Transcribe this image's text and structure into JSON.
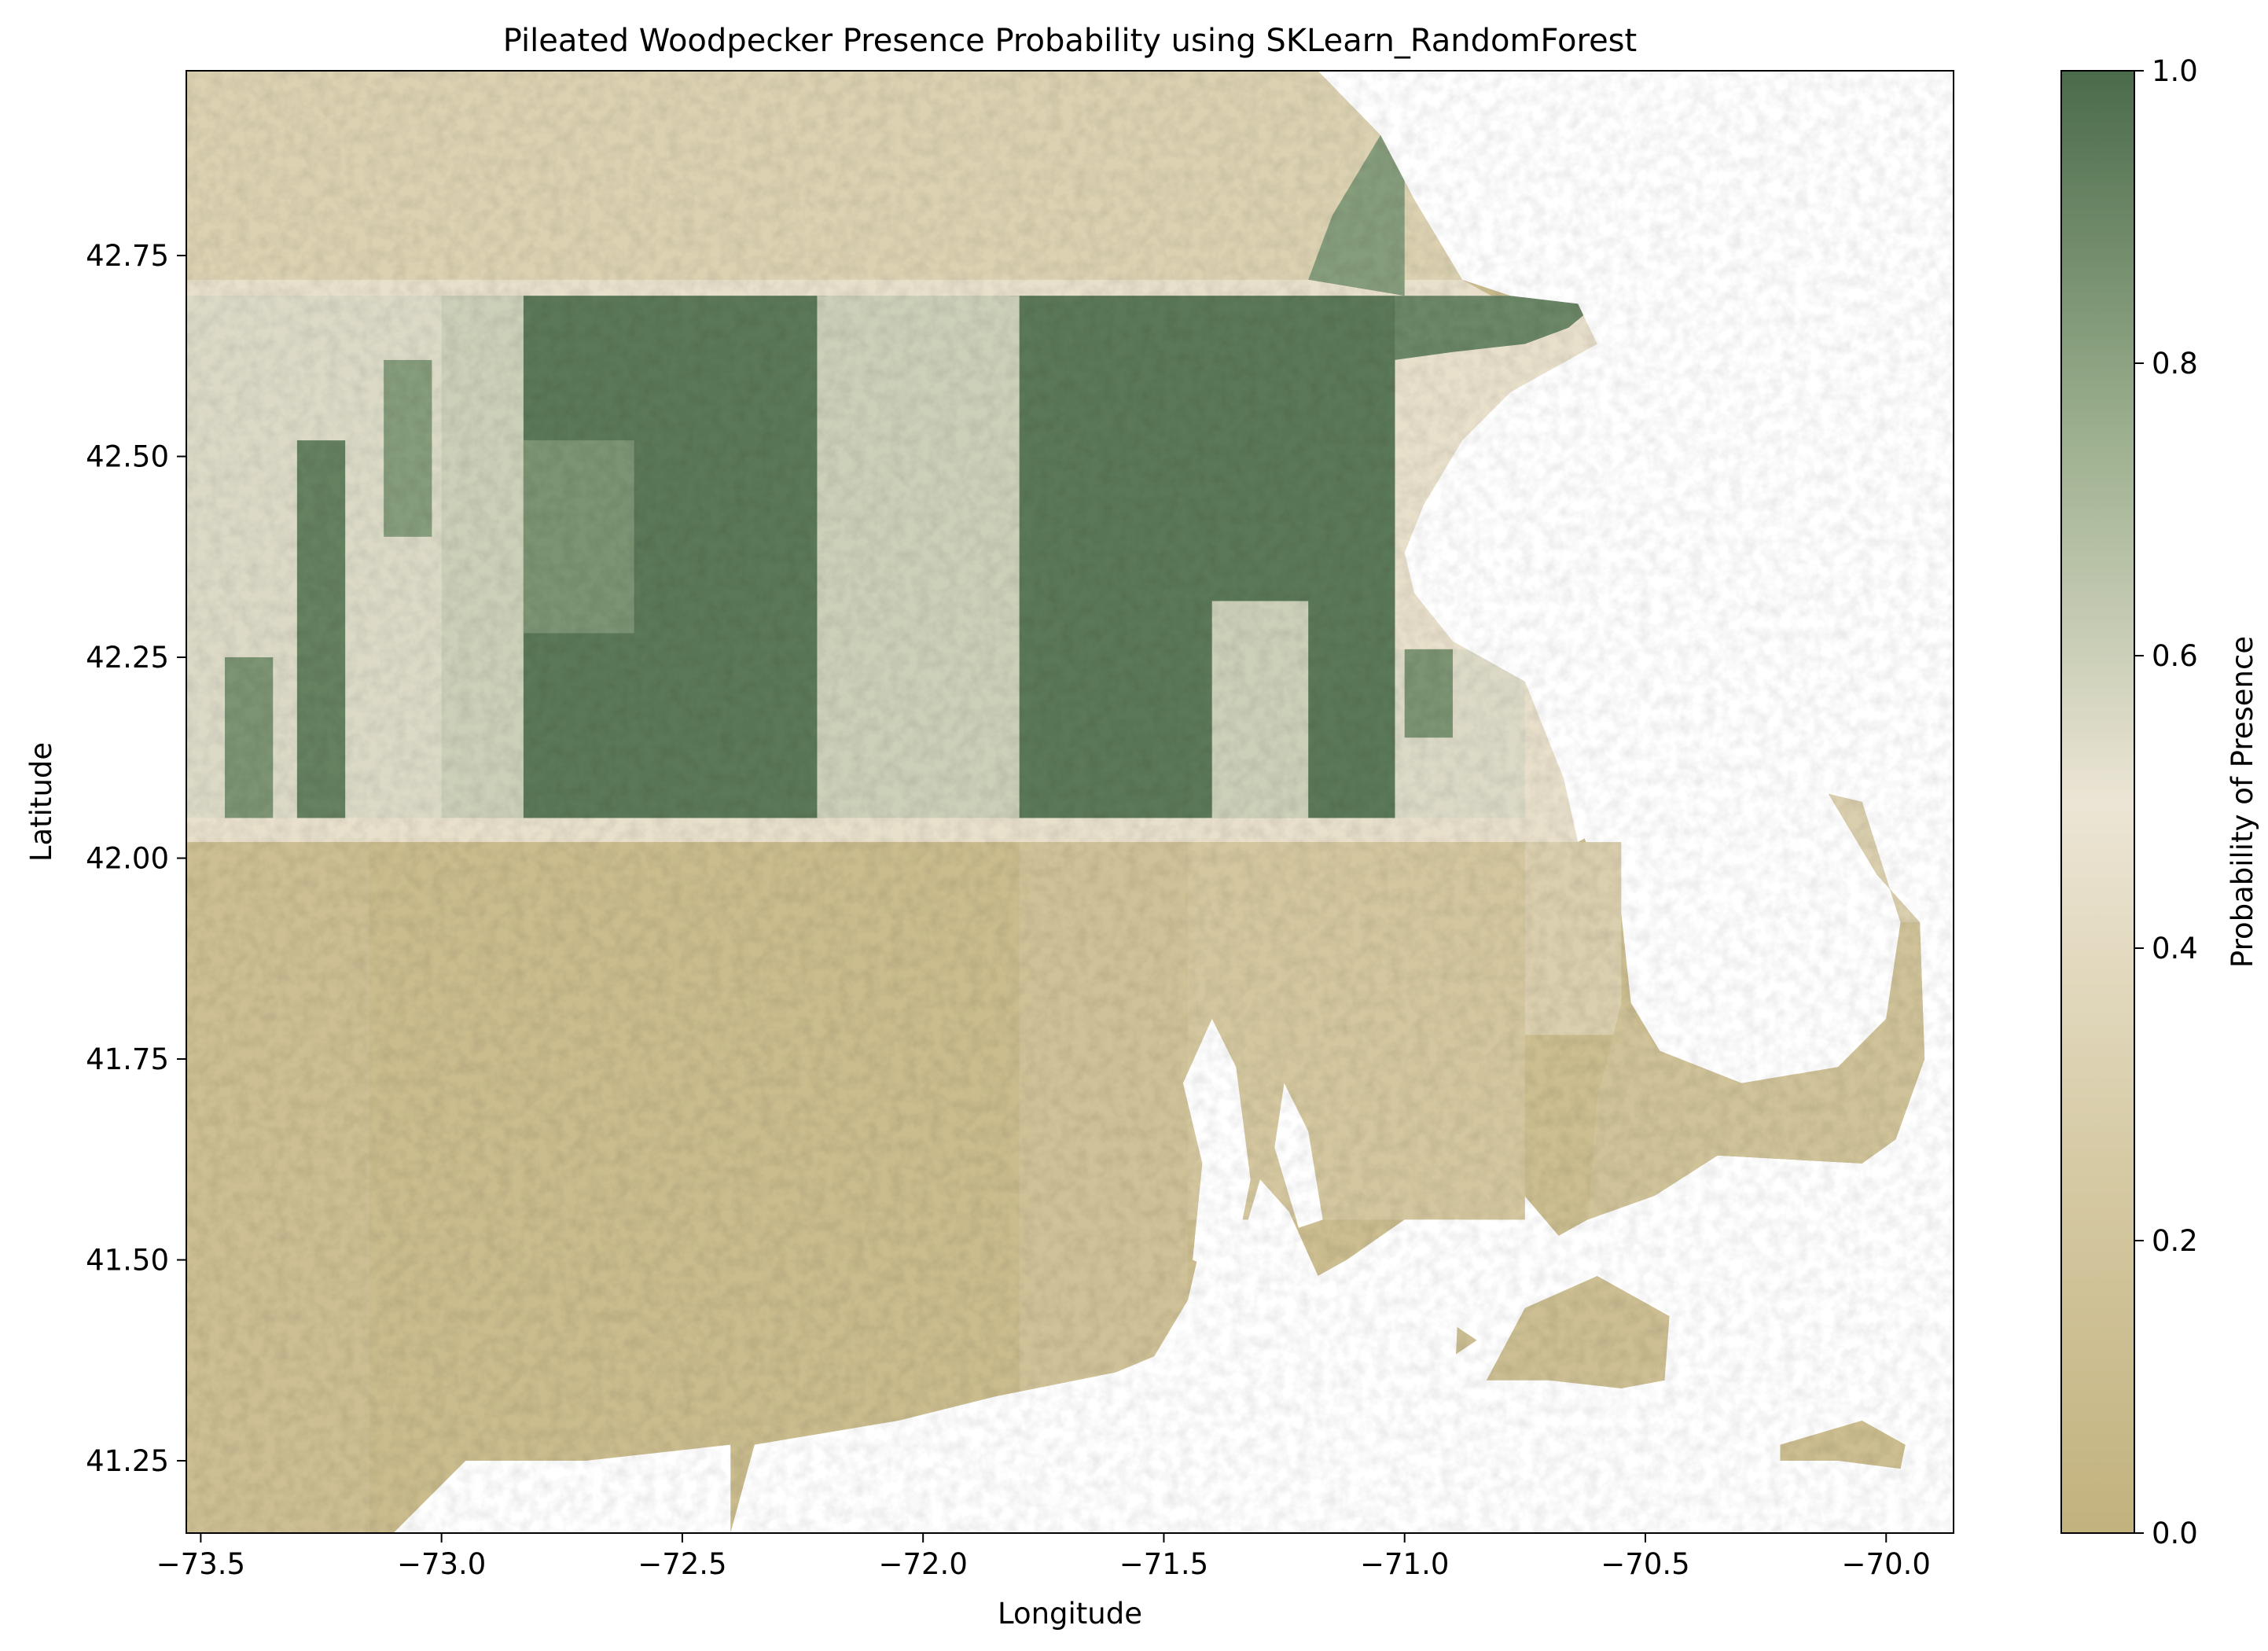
{
  "chart_data": {
    "type": "heatmap",
    "title": "Pileated Woodpecker Presence Probability using SKLearn_RandomForest",
    "xlabel": "Longitude",
    "ylabel": "Latitude",
    "xlim": [
      -73.53,
      -69.86
    ],
    "ylim": [
      41.16,
      42.98
    ],
    "xticks": [
      -73.5,
      -73.0,
      -72.5,
      -72.0,
      -71.5,
      -71.0,
      -70.5,
      -70.0
    ],
    "xtick_labels": [
      "−73.5",
      "−73.0",
      "−72.5",
      "−72.0",
      "−71.5",
      "−71.0",
      "−70.5",
      "−70.0"
    ],
    "yticks": [
      41.25,
      41.5,
      41.75,
      42.0,
      42.25,
      42.5,
      42.75
    ],
    "ytick_labels": [
      "41.25",
      "41.50",
      "41.75",
      "42.00",
      "42.25",
      "42.50",
      "42.75"
    ],
    "grid": false,
    "colorbar": {
      "label": "Probability of Presence",
      "range": [
        0.0,
        1.0
      ],
      "ticks": [
        0.0,
        0.2,
        0.4,
        0.6,
        0.8,
        1.0
      ],
      "tick_labels": [
        "0.0",
        "0.2",
        "0.4",
        "0.6",
        "0.8",
        "1.0"
      ],
      "colormap": [
        {
          "value": 0.0,
          "color": "#c2b27e"
        },
        {
          "value": 0.25,
          "color": "#d6caa4"
        },
        {
          "value": 0.5,
          "color": "#ece5d5"
        },
        {
          "value": 0.75,
          "color": "#9db08f"
        },
        {
          "value": 1.0,
          "color": "#4a6b4a"
        }
      ]
    },
    "regions": [
      {
        "name": "low-probability southern zone (lat < 42.0)",
        "approx_value": 0.12
      },
      {
        "name": "high-probability central band west (lon -72.8 to -72.2, lat 42.05 to 42.70)",
        "approx_value": 0.95
      },
      {
        "name": "high-probability central band east (lon -71.8 to -71.0, lat 42.05 to 42.70)",
        "approx_value": 0.95
      },
      {
        "name": "western highlands patches (lon -73.5 to -73.0, lat 42.05 to 42.70)",
        "approx_value": 0.75
      },
      {
        "name": "northern strip (lat > 42.70)",
        "approx_value": 0.3
      },
      {
        "name": "Cape Cod and islands",
        "approx_value": 0.15
      }
    ]
  }
}
